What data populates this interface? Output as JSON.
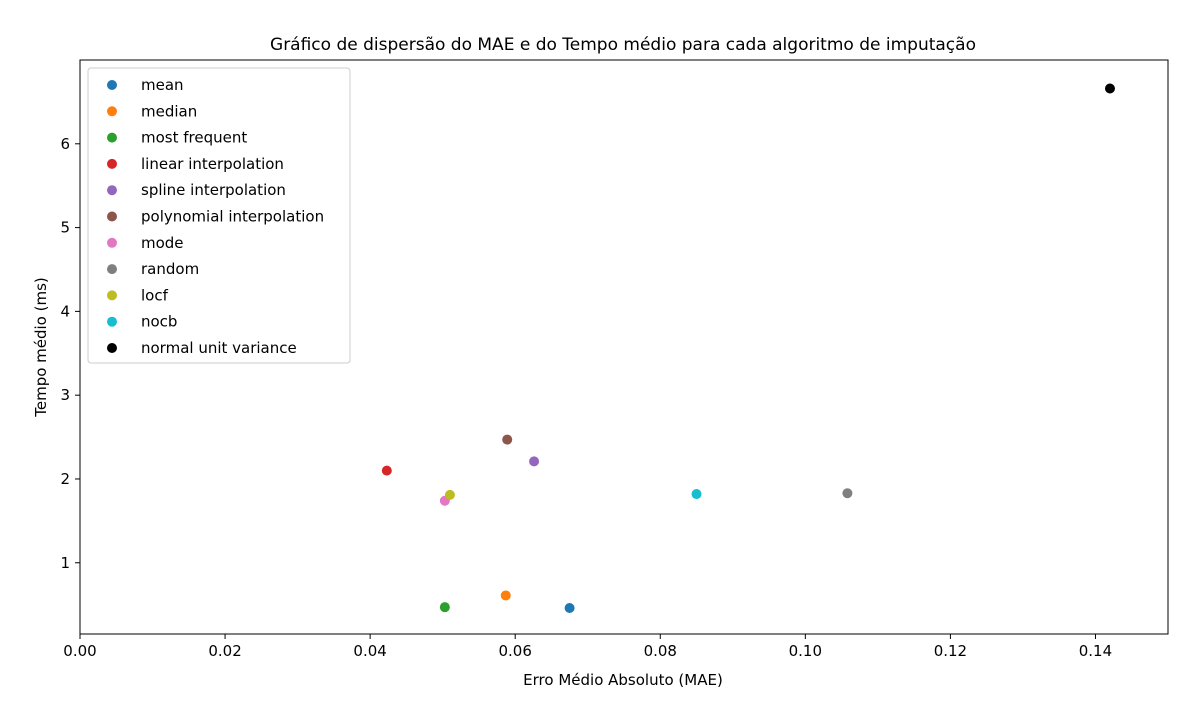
{
  "chart_data": {
    "type": "scatter",
    "title": "Gráfico de dispersão do MAE e do Tempo médio para cada algoritmo de imputação",
    "xlabel": "Erro Médio Absoluto (MAE)",
    "ylabel": "Tempo médio (ms)",
    "xlim": [
      0.0,
      0.15
    ],
    "ylim": [
      0.15,
      7.0
    ],
    "xticks": [
      0.0,
      0.02,
      0.04,
      0.06,
      0.08,
      0.1,
      0.12,
      0.14
    ],
    "xtick_labels": [
      "0.00",
      "0.02",
      "0.04",
      "0.06",
      "0.08",
      "0.10",
      "0.12",
      "0.14"
    ],
    "yticks": [
      1,
      2,
      3,
      4,
      5,
      6
    ],
    "ytick_labels": [
      "1",
      "2",
      "3",
      "4",
      "5",
      "6"
    ],
    "grid": false,
    "legend_position": "top-left",
    "series": [
      {
        "name": "mean",
        "color": "#1f77b4",
        "x": 0.0675,
        "y": 0.46
      },
      {
        "name": "median",
        "color": "#ff7f0e",
        "x": 0.0587,
        "y": 0.61
      },
      {
        "name": "most frequent",
        "color": "#2ca02c",
        "x": 0.0503,
        "y": 0.47
      },
      {
        "name": "linear interpolation",
        "color": "#d62728",
        "x": 0.0423,
        "y": 2.1
      },
      {
        "name": "spline interpolation",
        "color": "#9467bd",
        "x": 0.0626,
        "y": 2.21
      },
      {
        "name": "polynomial interpolation",
        "color": "#8c564b",
        "x": 0.0589,
        "y": 2.47
      },
      {
        "name": "mode",
        "color": "#e377c2",
        "x": 0.0503,
        "y": 1.74
      },
      {
        "name": "random",
        "color": "#7f7f7f",
        "x": 0.1058,
        "y": 1.83
      },
      {
        "name": "locf",
        "color": "#bcbd22",
        "x": 0.051,
        "y": 1.81
      },
      {
        "name": "nocb",
        "color": "#17becf",
        "x": 0.085,
        "y": 1.82
      },
      {
        "name": "normal unit variance",
        "color": "#000000",
        "x": 0.142,
        "y": 6.66
      }
    ]
  }
}
